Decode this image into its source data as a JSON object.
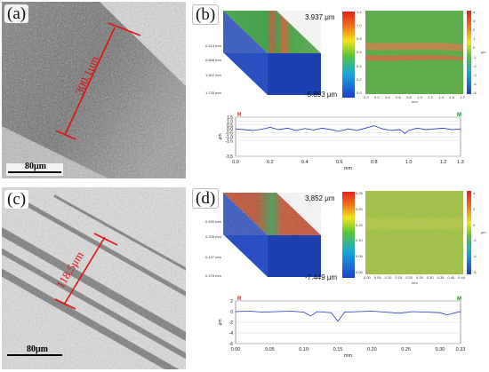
{
  "panels": {
    "a": {
      "letter": "(a)",
      "scale_label": "80μm",
      "measurement_label": "300.1μm"
    },
    "b": {
      "letter": "(b)",
      "max_value": "3.937 μm",
      "min_value": "-5.893 μm",
      "surface_ticks": [
        "0.414 mm",
        "0.868 mm",
        "1.302 mm",
        "1.733 mm"
      ],
      "colorbar_ticks": [
        "4",
        "3",
        "2",
        "1",
        "0",
        "-1",
        "-2",
        "-3",
        "-4",
        "-5"
      ],
      "map_x_ticks": [
        "0.0",
        "0.2",
        "0.4",
        "0.6",
        "0.8",
        "1.0",
        "1.2",
        "1.4",
        "1.6",
        "1.7"
      ],
      "map_y_ticks": [
        "0.0",
        "0.2",
        "0.4",
        "0.6",
        "0.8",
        "1.0",
        "1.2"
      ],
      "map_unit": "mm",
      "colorbar_unit": "μm",
      "profile": {
        "left_marker": "R",
        "right_marker": "M",
        "ylabel": "μm",
        "xlabel": "mm"
      }
    },
    "c": {
      "letter": "(c)",
      "scale_label": "80μm",
      "measurement_label": "118.5μm"
    },
    "d": {
      "letter": "(d)",
      "max_value": "3.852 μm",
      "min_value": "-7.449 μm",
      "surface_ticks": [
        "0.490 mm",
        "0.228 mm",
        "0.127 mm",
        "0.476 mm"
      ],
      "colorbar_ticks": [
        "4",
        "2",
        "0",
        "-2",
        "-4",
        "-6"
      ],
      "map_x_ticks": [
        "0.00",
        "0.05",
        "0.10",
        "0.15",
        "0.20",
        "0.25",
        "0.30",
        "0.35",
        "0.40",
        "0.44"
      ],
      "map_y_ticks": [
        "0.00",
        "0.05",
        "0.10",
        "0.15",
        "0.20",
        "0.25"
      ],
      "map_unit": "mm",
      "colorbar_unit": "μm",
      "profile": {
        "left_marker": "R",
        "right_marker": "M",
        "ylabel": "μm",
        "xlabel": "mm"
      }
    }
  },
  "chart_data": [
    {
      "type": "line",
      "panel": "b",
      "xlim": [
        0.0,
        1.3
      ],
      "ylim": [
        -3.5,
        1.5
      ],
      "x_ticks": [
        "0.0",
        "0.2",
        "0.4",
        "0.6",
        "0.8",
        "1.0",
        "1.2",
        "1.3"
      ],
      "y_ticks": [
        "1.5",
        "1.0",
        "0.5",
        "0.0",
        "-0.5",
        "-1.0",
        "-1.5",
        "-3.5"
      ],
      "x": [
        0.0,
        0.05,
        0.1,
        0.15,
        0.2,
        0.25,
        0.3,
        0.35,
        0.4,
        0.45,
        0.5,
        0.55,
        0.6,
        0.65,
        0.7,
        0.75,
        0.8,
        0.85,
        0.9,
        0.95,
        0.98,
        1.0,
        1.05,
        1.1,
        1.15,
        1.2,
        1.25,
        1.3
      ],
      "y": [
        0.0,
        -0.1,
        -0.2,
        -0.05,
        0.2,
        -0.1,
        0.1,
        -0.2,
        0.05,
        -0.15,
        0.1,
        -0.1,
        -0.3,
        0.0,
        -0.2,
        0.1,
        0.4,
        0.0,
        -0.2,
        -0.1,
        -0.6,
        -0.2,
        0.1,
        -0.1,
        0.0,
        0.1,
        -0.1,
        0.0
      ]
    },
    {
      "type": "line",
      "panel": "d",
      "xlim": [
        0.0,
        0.33
      ],
      "ylim": [
        -6,
        2
      ],
      "x_ticks": [
        "0.00",
        "0.05",
        "0.10",
        "0.15",
        "0.20",
        "0.25",
        "0.30",
        "0.33"
      ],
      "y_ticks": [
        "2",
        "0",
        "-2",
        "-4",
        "-6"
      ],
      "x": [
        0.0,
        0.02,
        0.04,
        0.06,
        0.08,
        0.1,
        0.11,
        0.12,
        0.14,
        0.15,
        0.16,
        0.18,
        0.2,
        0.22,
        0.24,
        0.26,
        0.28,
        0.3,
        0.31,
        0.33
      ],
      "y": [
        0.0,
        0.1,
        -0.1,
        0.0,
        0.1,
        -0.1,
        -0.8,
        0.0,
        -0.2,
        -1.8,
        -0.1,
        0.0,
        0.1,
        -0.1,
        -0.3,
        0.0,
        -0.1,
        -0.2,
        -0.6,
        0.0
      ]
    }
  ]
}
